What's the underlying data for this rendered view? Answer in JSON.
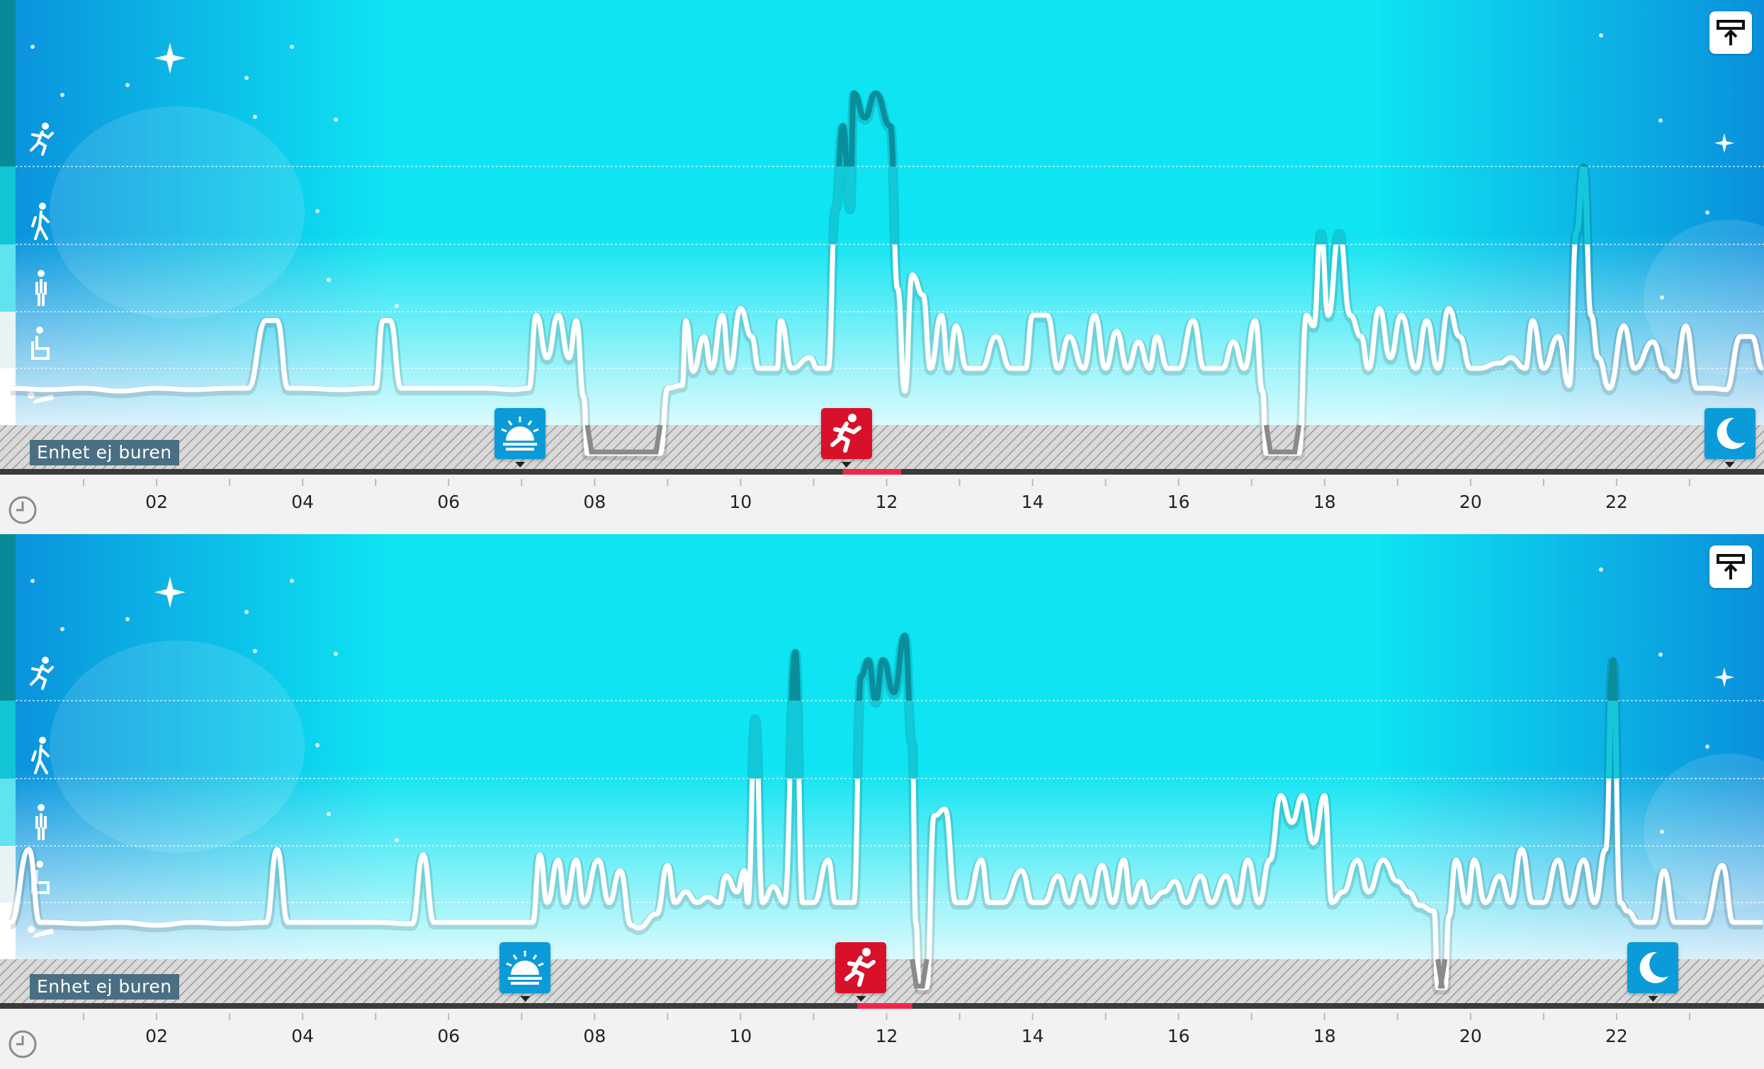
{
  "app": {
    "device_status_label": "Enhet ej buren"
  },
  "time_axis": {
    "ticks": [
      "02",
      "04",
      "06",
      "08",
      "10",
      "12",
      "14",
      "16",
      "18",
      "20",
      "22"
    ],
    "range_hours": [
      0,
      24
    ]
  },
  "activity_levels": [
    {
      "name": "sleep",
      "icon": "lying-person-icon"
    },
    {
      "name": "sedentary",
      "icon": "sitting-person-icon"
    },
    {
      "name": "light",
      "icon": "standing-person-icon"
    },
    {
      "name": "moderate",
      "icon": "walking-person-icon"
    },
    {
      "name": "vigorous",
      "icon": "running-person-icon"
    }
  ],
  "colors": {
    "sky_dark": "#0a90dc",
    "sky_light": "#0ee4f2",
    "not_worn_bar": "#8a8a8a",
    "marker_blue": "#0a9bd8",
    "marker_red": "#d8102a",
    "activity_highlight": "#f0254a",
    "timeline_bar": "#3a3a3a"
  },
  "days": [
    {
      "wake_time_h": 6.98,
      "run_time_h": 11.45,
      "bedtime_h": 23.55,
      "run_highlight_h": [
        11.4,
        12.2
      ],
      "not_worn_intervals_h": [
        [
          7.9,
          8.9
        ],
        [
          17.2,
          17.65
        ]
      ],
      "activity_trace": [
        [
          0,
          0.3
        ],
        [
          0.5,
          0.25
        ],
        [
          1,
          0.3
        ],
        [
          1.5,
          0.2
        ],
        [
          2,
          0.3
        ],
        [
          2.5,
          0.25
        ],
        [
          3,
          0.3
        ],
        [
          3.25,
          0.3
        ],
        [
          3.5,
          1.9
        ],
        [
          3.65,
          1.9
        ],
        [
          3.8,
          0.3
        ],
        [
          4,
          0.3
        ],
        [
          4.5,
          0.25
        ],
        [
          5,
          0.3
        ],
        [
          5.1,
          1.9
        ],
        [
          5.2,
          1.9
        ],
        [
          5.35,
          0.3
        ],
        [
          6,
          0.3
        ],
        [
          6.5,
          0.3
        ],
        [
          6.9,
          0.25
        ],
        [
          7.1,
          0.3
        ],
        [
          7.2,
          2.0
        ],
        [
          7.35,
          1.2
        ],
        [
          7.5,
          2.0
        ],
        [
          7.65,
          1.2
        ],
        [
          7.75,
          1.9
        ],
        [
          7.85,
          0.0
        ],
        [
          7.9,
          -0.8
        ],
        [
          8.9,
          -0.8
        ],
        [
          9.0,
          0.3
        ],
        [
          9.2,
          0.4
        ],
        [
          9.25,
          1.9
        ],
        [
          9.35,
          0.9
        ],
        [
          9.5,
          1.6
        ],
        [
          9.6,
          1.0
        ],
        [
          9.75,
          2.0
        ],
        [
          9.85,
          1.0
        ],
        [
          10,
          2.1
        ],
        [
          10.15,
          1.6
        ],
        [
          10.25,
          1.0
        ],
        [
          10.5,
          1.0
        ],
        [
          10.55,
          1.9
        ],
        [
          10.7,
          1.0
        ],
        [
          10.95,
          1.2
        ],
        [
          11.05,
          1.0
        ],
        [
          11.2,
          1.0
        ],
        [
          11.3,
          3.5
        ],
        [
          11.4,
          4.5
        ],
        [
          11.5,
          3.5
        ],
        [
          11.55,
          4.9
        ],
        [
          11.7,
          4.6
        ],
        [
          11.85,
          4.9
        ],
        [
          12.05,
          4.5
        ],
        [
          12.15,
          2.4
        ],
        [
          12.25,
          0.2
        ],
        [
          12.35,
          2.6
        ],
        [
          12.5,
          2.3
        ],
        [
          12.6,
          1.0
        ],
        [
          12.75,
          2.0
        ],
        [
          12.85,
          1.0
        ],
        [
          12.95,
          1.8
        ],
        [
          13.1,
          1.0
        ],
        [
          13.3,
          1.0
        ],
        [
          13.5,
          1.6
        ],
        [
          13.7,
          1.0
        ],
        [
          13.9,
          1.0
        ],
        [
          14,
          2.0
        ],
        [
          14.2,
          2.0
        ],
        [
          14.35,
          1.0
        ],
        [
          14.5,
          1.6
        ],
        [
          14.7,
          1.0
        ],
        [
          14.85,
          2.0
        ],
        [
          15.0,
          1.0
        ],
        [
          15.15,
          1.7
        ],
        [
          15.3,
          1.0
        ],
        [
          15.45,
          1.5
        ],
        [
          15.6,
          1.0
        ],
        [
          15.7,
          1.6
        ],
        [
          15.85,
          1.0
        ],
        [
          16,
          1.0
        ],
        [
          16.2,
          1.9
        ],
        [
          16.35,
          1.0
        ],
        [
          16.6,
          1.0
        ],
        [
          16.75,
          1.5
        ],
        [
          16.9,
          1.0
        ],
        [
          17.05,
          1.9
        ],
        [
          17.15,
          0.2
        ],
        [
          17.2,
          -0.8
        ],
        [
          17.65,
          -0.8
        ],
        [
          17.75,
          2.0
        ],
        [
          17.85,
          1.8
        ],
        [
          17.95,
          3.2
        ],
        [
          18.05,
          2.0
        ],
        [
          18.2,
          3.2
        ],
        [
          18.35,
          2.0
        ],
        [
          18.5,
          1.6
        ],
        [
          18.6,
          1.0
        ],
        [
          18.75,
          2.1
        ],
        [
          18.9,
          1.2
        ],
        [
          19.05,
          2.0
        ],
        [
          19.25,
          1.0
        ],
        [
          19.4,
          1.9
        ],
        [
          19.55,
          1.0
        ],
        [
          19.7,
          2.1
        ],
        [
          19.85,
          1.6
        ],
        [
          20.0,
          1.0
        ],
        [
          20.1,
          1.0
        ],
        [
          20.4,
          1.1
        ],
        [
          20.55,
          1.2
        ],
        [
          20.75,
          1.0
        ],
        [
          20.85,
          1.9
        ],
        [
          21.0,
          1.0
        ],
        [
          21.2,
          1.6
        ],
        [
          21.35,
          0.4
        ],
        [
          21.45,
          3.2
        ],
        [
          21.55,
          4.0
        ],
        [
          21.65,
          2.0
        ],
        [
          21.75,
          1.2
        ],
        [
          21.9,
          0.3
        ],
        [
          22.1,
          1.8
        ],
        [
          22.25,
          1.0
        ],
        [
          22.5,
          1.5
        ],
        [
          22.65,
          1.0
        ],
        [
          22.8,
          0.7
        ],
        [
          22.95,
          1.8
        ],
        [
          23.1,
          0.3
        ],
        [
          23.3,
          0.3
        ],
        [
          23.5,
          0.25
        ],
        [
          23.7,
          1.6
        ],
        [
          23.85,
          1.6
        ],
        [
          24,
          1.0
        ]
      ]
    },
    {
      "wake_time_h": 7.05,
      "run_time_h": 11.65,
      "bedtime_h": 22.5,
      "run_highlight_h": [
        11.6,
        12.35
      ],
      "not_worn_intervals_h": [
        [
          12.35,
          12.55
        ],
        [
          19.55,
          19.65
        ]
      ],
      "activity_trace": [
        [
          0,
          0.3
        ],
        [
          0.25,
          2.0
        ],
        [
          0.4,
          0.3
        ],
        [
          0.5,
          0.3
        ],
        [
          1,
          0.25
        ],
        [
          1.5,
          0.3
        ],
        [
          2,
          0.2
        ],
        [
          2.5,
          0.3
        ],
        [
          3,
          0.25
        ],
        [
          3.5,
          0.3
        ],
        [
          3.65,
          2.0
        ],
        [
          3.8,
          0.3
        ],
        [
          4,
          0.3
        ],
        [
          4.5,
          0.3
        ],
        [
          5,
          0.3
        ],
        [
          5.5,
          0.25
        ],
        [
          5.65,
          1.9
        ],
        [
          5.8,
          0.3
        ],
        [
          6,
          0.3
        ],
        [
          6.5,
          0.3
        ],
        [
          6.95,
          0.3
        ],
        [
          7.15,
          0.3
        ],
        [
          7.25,
          1.9
        ],
        [
          7.35,
          1.0
        ],
        [
          7.5,
          1.8
        ],
        [
          7.6,
          1.0
        ],
        [
          7.75,
          1.8
        ],
        [
          7.85,
          1.0
        ],
        [
          8.05,
          1.8
        ],
        [
          8.2,
          1.0
        ],
        [
          8.35,
          1.6
        ],
        [
          8.5,
          0.2
        ],
        [
          8.6,
          0.1
        ],
        [
          8.85,
          0.6
        ],
        [
          9.0,
          1.7
        ],
        [
          9.1,
          1.0
        ],
        [
          9.25,
          1.2
        ],
        [
          9.4,
          1.0
        ],
        [
          9.55,
          1.1
        ],
        [
          9.7,
          1.0
        ],
        [
          9.8,
          1.5
        ],
        [
          9.95,
          1.2
        ],
        [
          10.05,
          1.6
        ],
        [
          10.1,
          1.0
        ],
        [
          10.2,
          3.8
        ],
        [
          10.3,
          1.0
        ],
        [
          10.45,
          1.3
        ],
        [
          10.6,
          1.0
        ],
        [
          10.75,
          4.6
        ],
        [
          10.85,
          1.0
        ],
        [
          11.0,
          1.0
        ],
        [
          11.2,
          1.8
        ],
        [
          11.3,
          1.0
        ],
        [
          11.55,
          1.0
        ],
        [
          11.65,
          4.3
        ],
        [
          11.75,
          4.5
        ],
        [
          11.85,
          4.0
        ],
        [
          11.95,
          4.5
        ],
        [
          12.1,
          4.1
        ],
        [
          12.25,
          4.8
        ],
        [
          12.35,
          3.5
        ],
        [
          12.4,
          0.3
        ],
        [
          12.45,
          -0.8
        ],
        [
          12.55,
          -0.8
        ],
        [
          12.65,
          2.5
        ],
        [
          12.8,
          2.6
        ],
        [
          12.95,
          1.0
        ],
        [
          13.1,
          1.0
        ],
        [
          13.3,
          1.8
        ],
        [
          13.4,
          1.0
        ],
        [
          13.6,
          1.0
        ],
        [
          13.85,
          1.6
        ],
        [
          14.0,
          1.0
        ],
        [
          14.15,
          1.0
        ],
        [
          14.35,
          1.5
        ],
        [
          14.5,
          1.0
        ],
        [
          14.65,
          1.5
        ],
        [
          14.8,
          1.0
        ],
        [
          14.95,
          1.7
        ],
        [
          15.1,
          1.0
        ],
        [
          15.25,
          1.8
        ],
        [
          15.35,
          1.0
        ],
        [
          15.5,
          1.4
        ],
        [
          15.6,
          1.0
        ],
        [
          15.8,
          1.2
        ],
        [
          15.95,
          1.4
        ],
        [
          16.1,
          1.0
        ],
        [
          16.3,
          1.5
        ],
        [
          16.45,
          1.0
        ],
        [
          16.65,
          1.5
        ],
        [
          16.8,
          1.0
        ],
        [
          16.95,
          1.8
        ],
        [
          17.1,
          1.0
        ],
        [
          17.25,
          1.8
        ],
        [
          17.4,
          2.8
        ],
        [
          17.55,
          2.4
        ],
        [
          17.7,
          2.8
        ],
        [
          17.85,
          2.1
        ],
        [
          18.0,
          2.8
        ],
        [
          18.1,
          1.0
        ],
        [
          18.25,
          1.2
        ],
        [
          18.45,
          1.8
        ],
        [
          18.6,
          1.2
        ],
        [
          18.8,
          1.8
        ],
        [
          19.0,
          1.4
        ],
        [
          19.15,
          1.2
        ],
        [
          19.3,
          0.9
        ],
        [
          19.5,
          0.7
        ],
        [
          19.55,
          -0.8
        ],
        [
          19.65,
          -0.8
        ],
        [
          19.7,
          0.5
        ],
        [
          19.8,
          1.8
        ],
        [
          19.95,
          1.0
        ],
        [
          20.05,
          1.8
        ],
        [
          20.2,
          1.0
        ],
        [
          20.4,
          1.5
        ],
        [
          20.55,
          1.0
        ],
        [
          20.7,
          2.0
        ],
        [
          20.85,
          1.0
        ],
        [
          21.0,
          1.0
        ],
        [
          21.2,
          1.8
        ],
        [
          21.35,
          1.0
        ],
        [
          21.55,
          1.8
        ],
        [
          21.7,
          1.0
        ],
        [
          21.85,
          2.0
        ],
        [
          21.95,
          4.5
        ],
        [
          22.05,
          1.0
        ],
        [
          22.15,
          0.7
        ],
        [
          22.3,
          0.3
        ],
        [
          22.5,
          0.3
        ],
        [
          22.65,
          1.6
        ],
        [
          22.8,
          0.3
        ],
        [
          23.2,
          0.3
        ],
        [
          23.45,
          1.7
        ],
        [
          23.6,
          0.3
        ],
        [
          24,
          0.3
        ]
      ]
    }
  ]
}
